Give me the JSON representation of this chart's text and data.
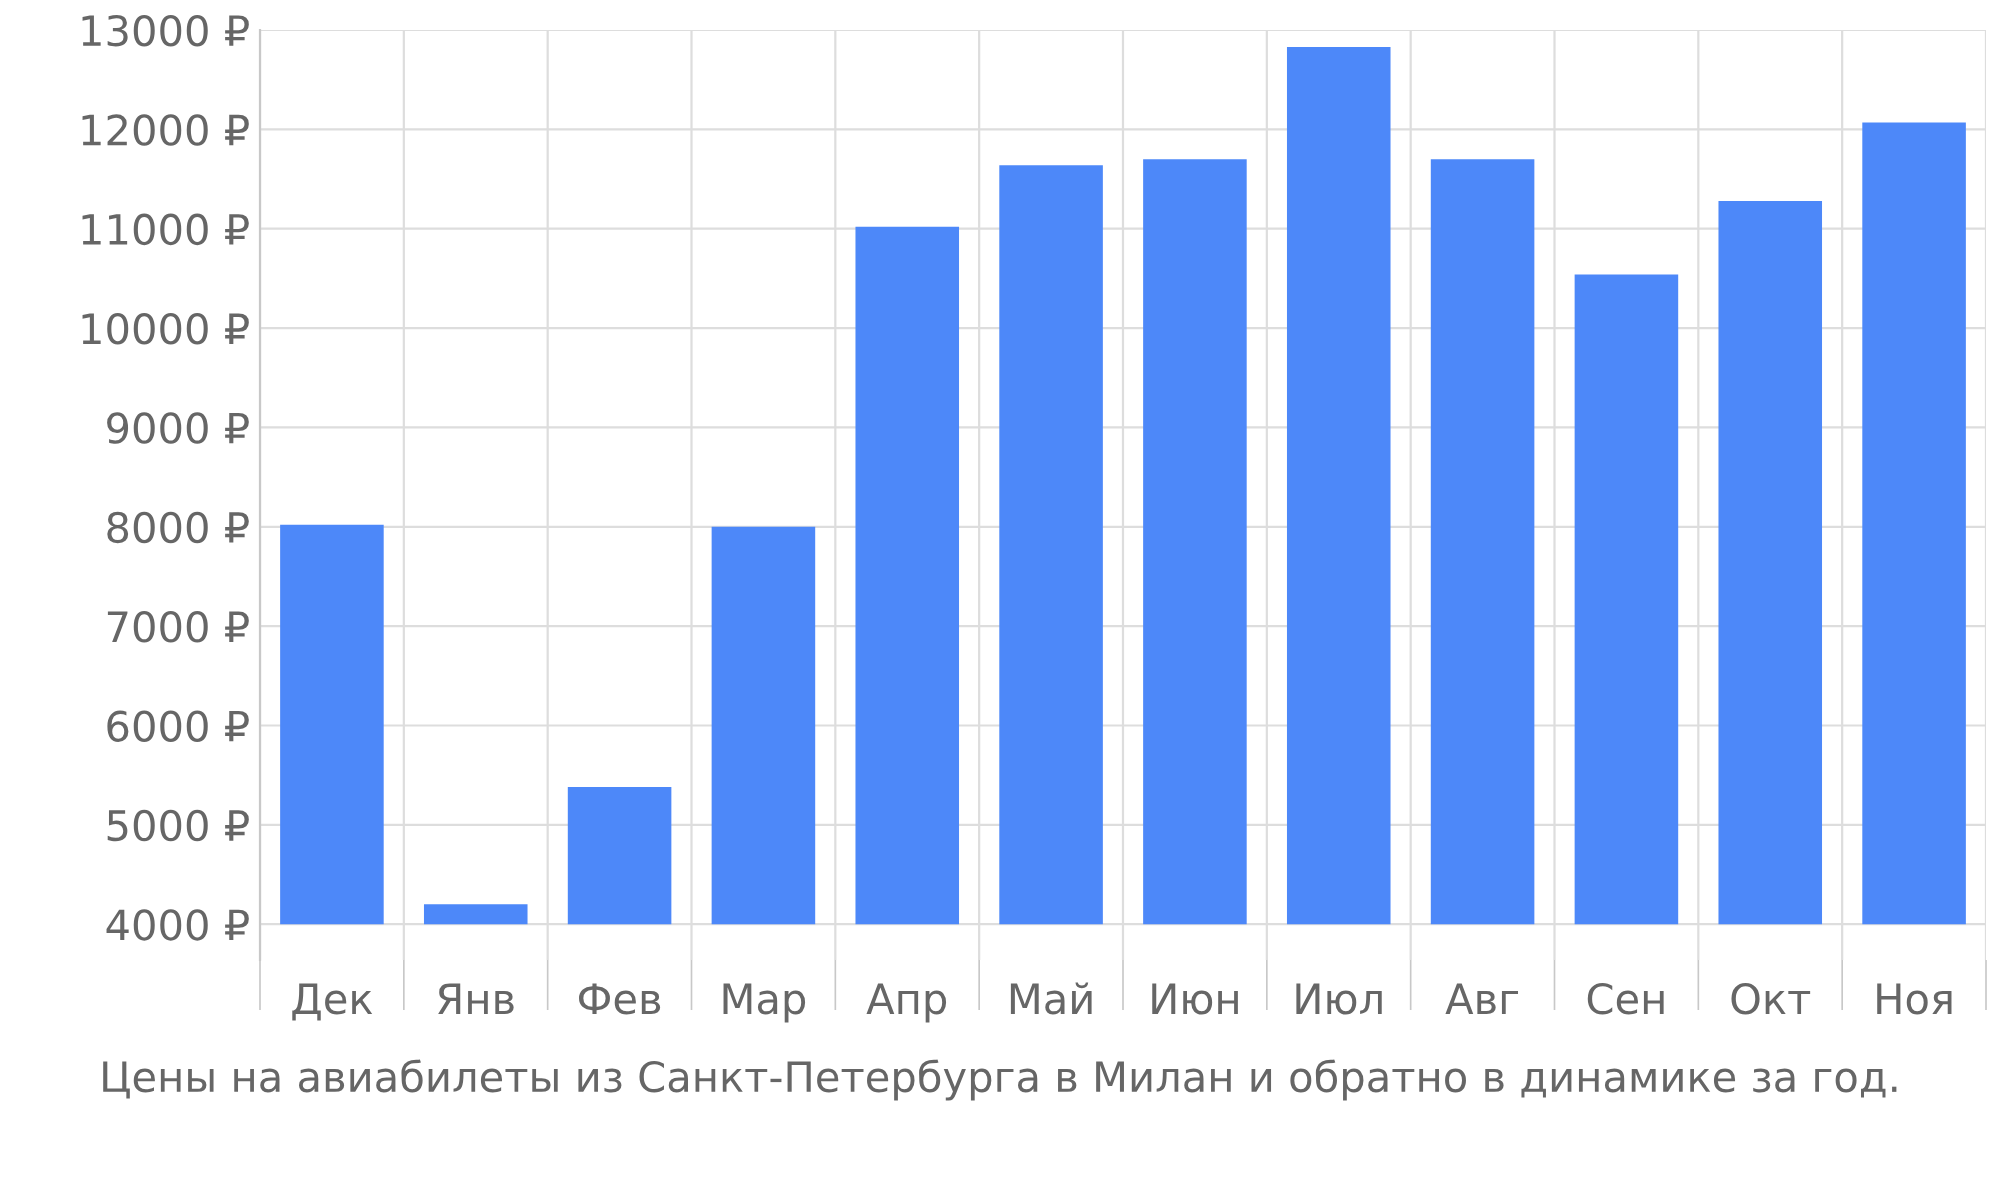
{
  "chart_data": {
    "type": "bar",
    "annotations": [
      "Цены на авиабилеты из Санкт-Петербурга в Милан и обратно в динамике за год."
    ],
    "categories": [
      "Дек",
      "Янв",
      "Фев",
      "Мар",
      "Апр",
      "Май",
      "Июн",
      "Июл",
      "Авг",
      "Сен",
      "Окт",
      "Ноя"
    ],
    "values": [
      4020,
      200,
      1380,
      4000,
      7020,
      7640,
      7700,
      8830,
      7700,
      6540,
      7280,
      8070
    ],
    "base": [
      4000,
      4000,
      4000,
      4000,
      4000,
      4000,
      4000,
      4000,
      4000,
      4000,
      4000,
      4000
    ],
    "color": "#4d88f9",
    "ylim": [
      3640,
      13000
    ],
    "yticks": [
      {
        "value": 4000,
        "label": "4000 ₽"
      },
      {
        "value": 5000,
        "label": "5000 ₽"
      },
      {
        "value": 6000,
        "label": "6000 ₽"
      },
      {
        "value": 7000,
        "label": "7000 ₽"
      },
      {
        "value": 8000,
        "label": "8000 ₽"
      },
      {
        "value": 9000,
        "label": "9000 ₽"
      },
      {
        "value": 10000,
        "label": "10000 ₽"
      },
      {
        "value": 11000,
        "label": "11000 ₽"
      },
      {
        "value": 12000,
        "label": "12000 ₽"
      },
      {
        "value": 13000,
        "label": "13000 ₽"
      }
    ],
    "grid": true
  }
}
